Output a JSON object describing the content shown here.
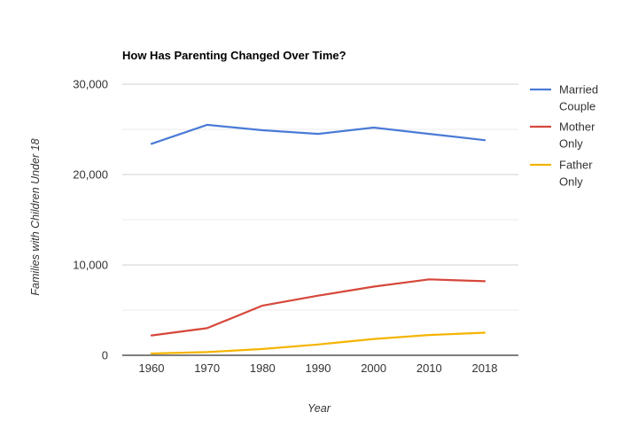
{
  "chart_data": {
    "type": "line",
    "title": "How Has Parenting Changed Over Time?",
    "xlabel": "Year",
    "ylabel": "Families with Children Under 18",
    "categories": [
      "1960",
      "1970",
      "1980",
      "1990",
      "2000",
      "2010",
      "2018"
    ],
    "ylim": [
      0,
      30000
    ],
    "yticks": [
      0,
      10000,
      20000,
      30000
    ],
    "ytick_labels": [
      "0",
      "10,000",
      "20,000",
      "30,000"
    ],
    "grid": true,
    "legend_position": "right",
    "series": [
      {
        "name": "Married Couple",
        "legend_lines": [
          "Married",
          "Couple"
        ],
        "color": "#4a7bd6",
        "values": [
          23400,
          25500,
          24900,
          24500,
          25200,
          24500,
          23800
        ]
      },
      {
        "name": "Mother Only",
        "legend_lines": [
          "Mother",
          "Only"
        ],
        "color": "#d6473a",
        "values": [
          2200,
          3000,
          5500,
          6600,
          7600,
          8400,
          8200
        ]
      },
      {
        "name": "Father Only",
        "legend_lines": [
          "Father",
          "Only"
        ],
        "color": "#f4b400",
        "values": [
          200,
          350,
          700,
          1200,
          1800,
          2250,
          2500
        ]
      }
    ]
  }
}
